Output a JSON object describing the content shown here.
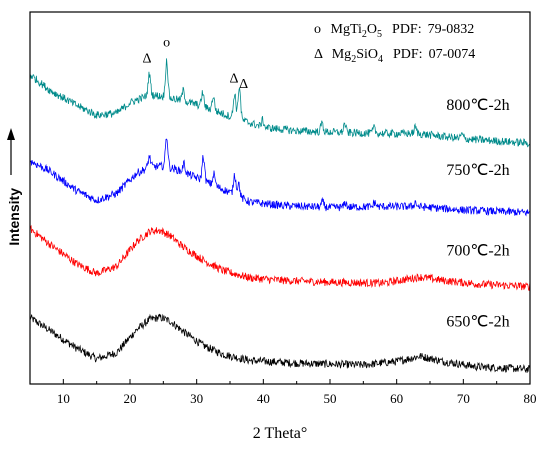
{
  "chart_data": {
    "type": "line",
    "xlabel": "2 Theta°",
    "ylabel": "Intensity",
    "xlim": [
      5,
      80
    ],
    "xticks": [
      10,
      20,
      30,
      40,
      50,
      60,
      70,
      80
    ],
    "xtick_labels": [
      "10",
      "20",
      "30",
      "40",
      "50",
      "60",
      "70",
      "80"
    ],
    "grid": false,
    "legend": {
      "placement": "top-right",
      "entries": [
        {
          "symbol": "o",
          "phase_main": "MgTi",
          "sub1": "2",
          "phase_mid": "O",
          "sub2": "5",
          "pdf_label": "PDF:",
          "pdf_number": "79-0832"
        },
        {
          "symbol": "Δ",
          "phase_main": "Mg",
          "sub1": "2",
          "phase_mid": "SiO",
          "sub2": "4",
          "pdf_label": "PDF:",
          "pdf_number": "07-0074"
        }
      ]
    },
    "series": [
      {
        "name": "650℃-2h",
        "color": "#000000",
        "baseline": 0,
        "trend": [
          [
            5,
            0.62
          ],
          [
            8,
            0.47
          ],
          [
            12,
            0.27
          ],
          [
            15,
            0.15
          ],
          [
            18,
            0.22
          ],
          [
            21,
            0.48
          ],
          [
            23,
            0.6
          ],
          [
            24.5,
            0.62
          ],
          [
            26,
            0.58
          ],
          [
            28,
            0.46
          ],
          [
            31,
            0.3
          ],
          [
            34,
            0.2
          ],
          [
            38,
            0.13
          ],
          [
            45,
            0.1
          ],
          [
            55,
            0.08
          ],
          [
            60,
            0.12
          ],
          [
            63.5,
            0.18
          ],
          [
            67,
            0.12
          ],
          [
            72,
            0.06
          ],
          [
            80,
            0.03
          ]
        ],
        "peaks": []
      },
      {
        "name": "700℃-2h",
        "color": "#ff0000",
        "baseline": 0.95,
        "trend": [
          [
            5,
            0.68
          ],
          [
            8,
            0.5
          ],
          [
            12,
            0.28
          ],
          [
            15,
            0.17
          ],
          [
            18,
            0.25
          ],
          [
            21,
            0.53
          ],
          [
            23,
            0.65
          ],
          [
            24.5,
            0.66
          ],
          [
            26,
            0.6
          ],
          [
            28,
            0.47
          ],
          [
            31,
            0.32
          ],
          [
            34,
            0.2
          ],
          [
            38,
            0.12
          ],
          [
            43,
            0.09
          ],
          [
            50,
            0.07
          ],
          [
            58,
            0.06
          ],
          [
            63.5,
            0.13
          ],
          [
            67,
            0.09
          ],
          [
            72,
            0.05
          ],
          [
            80,
            0.02
          ]
        ],
        "peaks": []
      },
      {
        "name": "750℃-2h",
        "color": "#0000ff",
        "baseline": 1.78,
        "trend": [
          [
            5,
            0.62
          ],
          [
            8,
            0.5
          ],
          [
            12,
            0.28
          ],
          [
            15,
            0.17
          ],
          [
            18,
            0.25
          ],
          [
            21,
            0.48
          ],
          [
            23,
            0.55
          ],
          [
            25,
            0.56
          ],
          [
            27,
            0.52
          ],
          [
            29,
            0.46
          ],
          [
            32,
            0.36
          ],
          [
            35,
            0.26
          ],
          [
            38,
            0.15
          ],
          [
            43,
            0.11
          ],
          [
            50,
            0.09
          ],
          [
            58,
            0.1
          ],
          [
            63,
            0.1
          ],
          [
            70,
            0.06
          ],
          [
            80,
            0.03
          ]
        ],
        "peaks": [
          [
            22.9,
            0.12
          ],
          [
            25.5,
            0.35
          ],
          [
            28.1,
            0.1
          ],
          [
            31.0,
            0.28
          ],
          [
            32.6,
            0.13
          ],
          [
            35.7,
            0.23
          ],
          [
            36.3,
            0.15
          ],
          [
            48.9,
            0.06
          ],
          [
            52.3,
            0.05
          ],
          [
            56.7,
            0.05
          ],
          [
            62.8,
            0.05
          ]
        ]
      },
      {
        "name": "800℃-2h",
        "color": "#008b8b",
        "baseline": 2.58,
        "trend": [
          [
            5,
            0.8
          ],
          [
            8,
            0.62
          ],
          [
            12,
            0.45
          ],
          [
            15,
            0.34
          ],
          [
            18,
            0.36
          ],
          [
            20,
            0.48
          ],
          [
            23,
            0.57
          ],
          [
            25,
            0.55
          ],
          [
            28,
            0.5
          ],
          [
            30,
            0.46
          ],
          [
            33,
            0.38
          ],
          [
            36,
            0.3
          ],
          [
            40,
            0.2
          ],
          [
            45,
            0.16
          ],
          [
            52,
            0.14
          ],
          [
            58,
            0.13
          ],
          [
            63,
            0.13
          ],
          [
            70,
            0.07
          ],
          [
            80,
            0.02
          ]
        ],
        "peaks": [
          [
            22.9,
            0.24
          ],
          [
            25.5,
            0.42
          ],
          [
            28.0,
            0.12
          ],
          [
            30.9,
            0.16
          ],
          [
            32.5,
            0.16
          ],
          [
            35.7,
            0.28
          ],
          [
            36.4,
            0.38
          ],
          [
            39.9,
            0.08
          ],
          [
            48.8,
            0.1
          ],
          [
            52.2,
            0.1
          ],
          [
            56.6,
            0.06
          ],
          [
            62.8,
            0.07
          ],
          [
            69.8,
            0.05
          ]
        ]
      }
    ],
    "annotations": [
      {
        "text": "Δ",
        "x": 23.0,
        "series": 3
      },
      {
        "text": "o",
        "x": 25.5,
        "series": 3
      },
      {
        "text": "Δ",
        "x": 35.6,
        "series": 3
      },
      {
        "text": "Δ",
        "x": 36.6,
        "series": 3
      }
    ]
  }
}
